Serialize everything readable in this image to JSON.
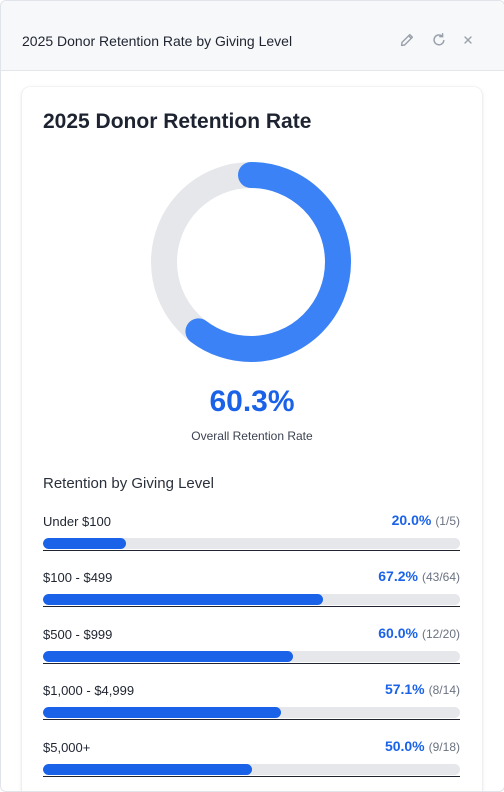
{
  "window": {
    "title": "2025 Donor Retention Rate by Giving Level",
    "icons": [
      "pencil-icon",
      "refresh-icon",
      "close-icon"
    ]
  },
  "card": {
    "title": "2025 Donor Retention Rate",
    "overall_rate": "60.3%",
    "overall_fraction": 0.603,
    "overall_caption": "Overall Retention Rate",
    "section_title": "Retention by Giving Level",
    "colors": {
      "accent": "#1a63e8",
      "donut_fill": "#3b82f6",
      "track": "#e5e7eb"
    },
    "levels": [
      {
        "label": "Under $100",
        "pct": "20.0%",
        "count": "(1/5)",
        "fraction": 0.2
      },
      {
        "label": "$100 - $499",
        "pct": "67.2%",
        "count": "(43/64)",
        "fraction": 0.672
      },
      {
        "label": "$500 - $999",
        "pct": "60.0%",
        "count": "(12/20)",
        "fraction": 0.6
      },
      {
        "label": "$1,000 - $4,999",
        "pct": "57.1%",
        "count": "(8/14)",
        "fraction": 0.571
      },
      {
        "label": "$5,000+",
        "pct": "50.0%",
        "count": "(9/18)",
        "fraction": 0.5
      }
    ]
  }
}
